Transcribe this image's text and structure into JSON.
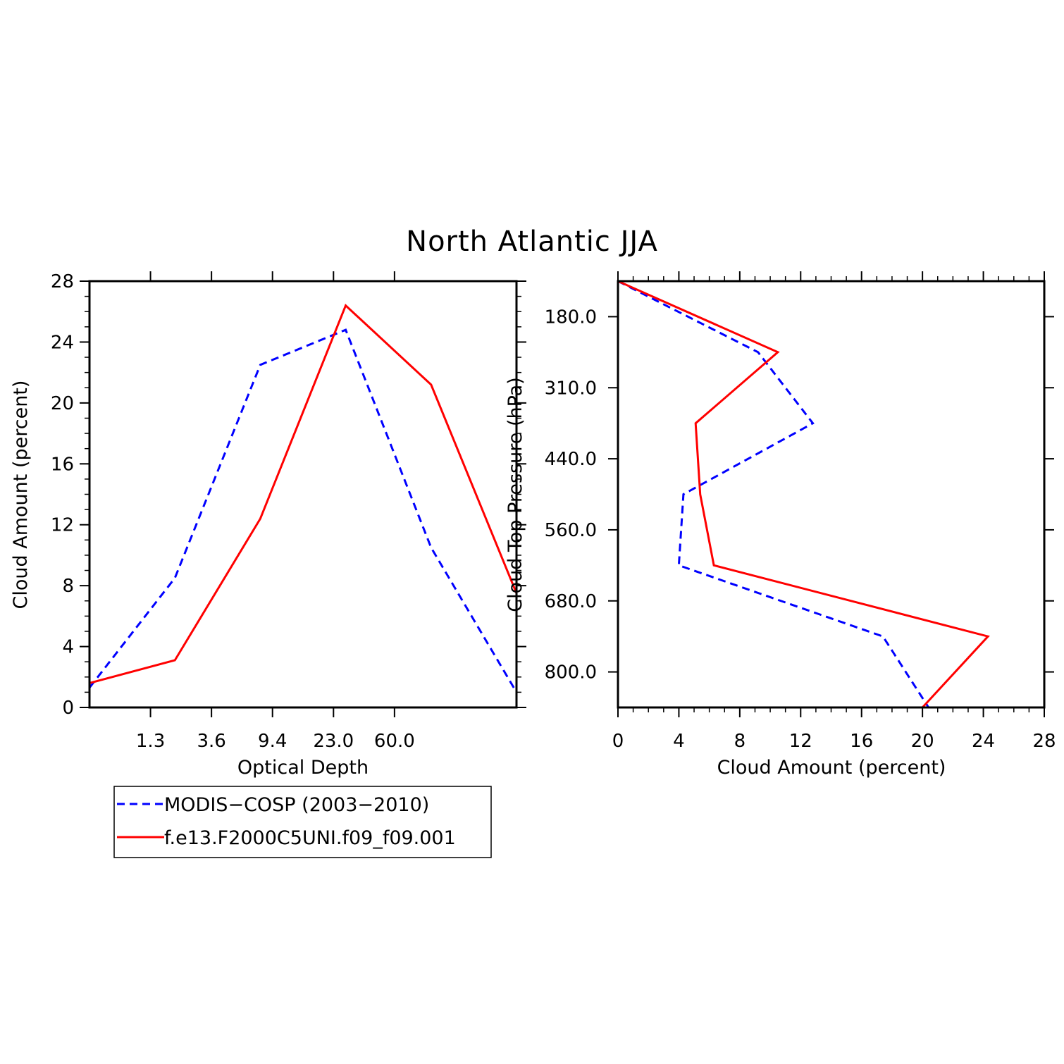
{
  "figure": {
    "title": "North Atlantic JJA",
    "legend": [
      {
        "label": "MODIS−COSP (2003−2010)",
        "color": "#0000ff",
        "style": "dashed"
      },
      {
        "label": "f.e13.F2000C5UNI.f09_f09.001",
        "color": "#ff0000",
        "style": "solid"
      }
    ]
  },
  "chart_data": [
    {
      "type": "line",
      "xlabel": "Optical Depth",
      "ylabel": "Cloud Amount (percent)",
      "x_tick_labels": [
        "1.3",
        "3.6",
        "9.4",
        "23.0",
        "60.0"
      ],
      "y_ticks": [
        0,
        4,
        8,
        12,
        16,
        20,
        24,
        28
      ],
      "ylim": [
        0,
        28
      ],
      "x_bins": 7,
      "series": [
        {
          "name": "MODIS−COSP (2003−2010)",
          "color": "#0000ff",
          "dashed": true,
          "values": [
            1.3,
            8.5,
            22.5,
            24.8,
            10.5,
            1.0
          ]
        },
        {
          "name": "f.e13.F2000C5UNI.f09_f09.001",
          "color": "#ff0000",
          "dashed": false,
          "values": [
            1.6,
            3.1,
            12.4,
            26.4,
            21.2,
            7.5
          ]
        }
      ]
    },
    {
      "type": "line",
      "xlabel": "Cloud Amount (percent)",
      "ylabel": "Cloud Top Pressure (hPa)",
      "x_ticks": [
        0,
        4,
        8,
        12,
        16,
        20,
        24,
        28
      ],
      "xlim": [
        0,
        28
      ],
      "y_tick_labels": [
        "180.0",
        "310.0",
        "440.0",
        "560.0",
        "680.0",
        "800.0"
      ],
      "y_bins": 6,
      "series": [
        {
          "name": "MODIS−COSP (2003−2010)",
          "color": "#0000ff",
          "dashed": true,
          "values": [
            0.0,
            9.2,
            12.8,
            4.3,
            4.0,
            17.4,
            20.4
          ]
        },
        {
          "name": "f.e13.F2000C5UNI.f09_f09.001",
          "color": "#ff0000",
          "dashed": false,
          "values": [
            0.0,
            10.5,
            5.1,
            5.4,
            6.3,
            24.3,
            20.0
          ]
        }
      ]
    }
  ]
}
